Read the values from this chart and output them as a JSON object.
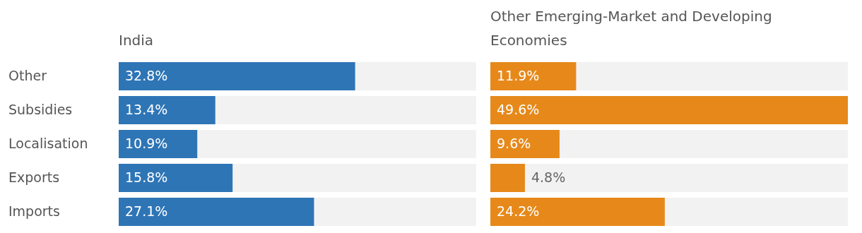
{
  "chart_data": [
    {
      "type": "bar",
      "title": "India",
      "orientation": "horizontal",
      "categories": [
        "Other",
        "Subsidies",
        "Localisation",
        "Exports",
        "Imports"
      ],
      "values": [
        32.8,
        13.4,
        10.9,
        15.8,
        27.1
      ],
      "value_labels": [
        "32.8%",
        "13.4%",
        "10.9%",
        "15.8%",
        "27.1%"
      ],
      "color": "#2e75b6",
      "tick_labels": "y"
    },
    {
      "type": "bar",
      "title": "Other Emerging-Market and Developing Economies",
      "orientation": "horizontal",
      "values": [
        11.9,
        49.6,
        9.6,
        4.8,
        24.2
      ],
      "value_labels": [
        "11.9%",
        "49.6%",
        "9.6%",
        "4.8%",
        "24.2%"
      ],
      "color": "#e6891a",
      "tick_labels": false
    }
  ]
}
